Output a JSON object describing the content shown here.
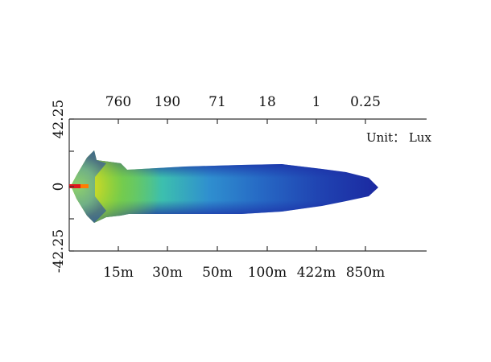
{
  "chart_data": {
    "type": "heatmap",
    "unit_label": "Unit： Lux",
    "y_tick_labels": [
      "42.25",
      "0",
      "-42.25"
    ],
    "x_bottom": {
      "tick_labels": [
        "15m",
        "30m",
        "50m",
        "100m",
        "422m",
        "850m"
      ]
    },
    "x_top": {
      "tick_labels": [
        "760",
        "190",
        "71",
        "18",
        "1",
        "0.25"
      ]
    },
    "colormap": [
      "#1a1e9a",
      "#1f3fb0",
      "#2a6cc7",
      "#2fa5cf",
      "#3cc6a9",
      "#7fcf3c",
      "#bfd72c",
      "#f5e21d",
      "#ff7d00",
      "#e0171c"
    ]
  }
}
